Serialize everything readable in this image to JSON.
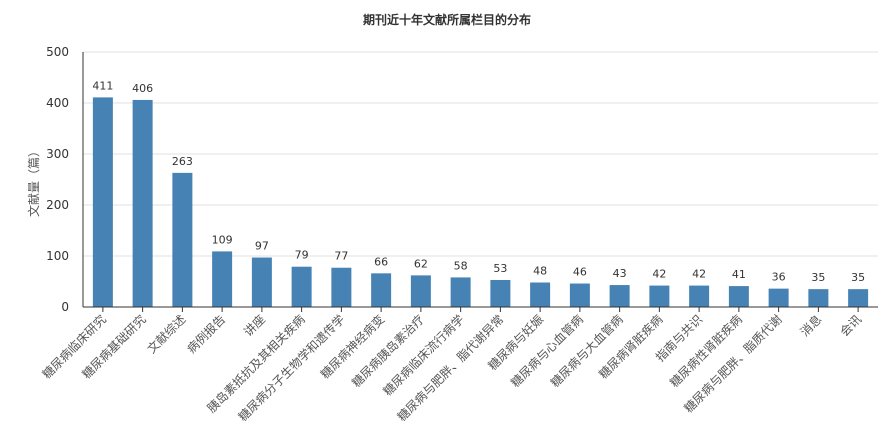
{
  "chart_data": {
    "type": "bar",
    "title": "期刊近十年文献所属栏目的分布",
    "xlabel": "",
    "ylabel": "文献量（篇）",
    "ylim": [
      0,
      500
    ],
    "yticks": [
      0,
      100,
      200,
      300,
      400,
      500
    ],
    "grid": true,
    "legend": "none",
    "bar_color": "#4682b4",
    "categories": [
      "糖尿病临床研究",
      "糖尿病基础研究",
      "文献综述",
      "病例报告",
      "讲座",
      "胰岛素抵抗及其相关疾病",
      "糖尿病分子生物学和遗传学",
      "糖尿病神经病变",
      "糖尿病胰岛素治疗",
      "糖尿病临床流行病学",
      "糖尿病与肥胖、脂代谢异常",
      "糖尿病与妊娠",
      "糖尿病与心血管病",
      "糖尿病与大血管病",
      "糖尿病肾脏疾病",
      "指南与共识",
      "糖尿病性肾脏疾病",
      "糖尿病与肥胖、脂质代谢",
      "消息",
      "会讯"
    ],
    "values": [
      411,
      406,
      263,
      109,
      97,
      79,
      77,
      66,
      62,
      58,
      53,
      48,
      46,
      43,
      42,
      42,
      41,
      36,
      35,
      35
    ]
  }
}
